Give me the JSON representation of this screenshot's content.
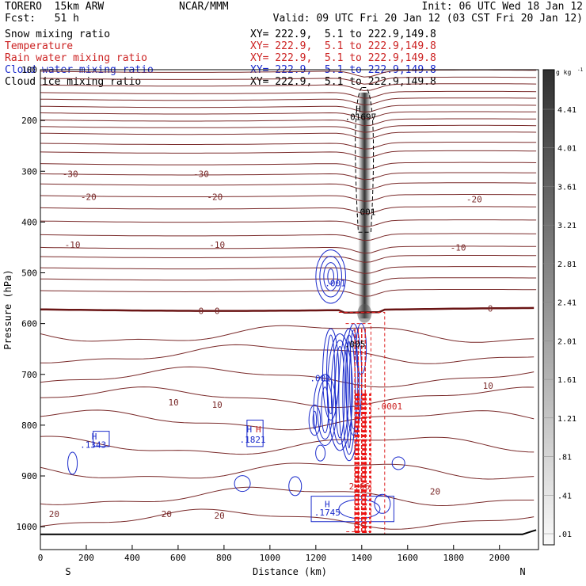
{
  "header": {
    "model": "TORERO  15km ARW",
    "org": "NCAR/MMM",
    "init": "Init: 06 UTC Wed 18 Jan 12",
    "fcst": "Fcst:   51 h",
    "valid": "Valid: 09 UTC Fri 20 Jan 12 (03 CST Fri 20 Jan 12)"
  },
  "legend": [
    {
      "label": "Snow mixing ratio",
      "xy": "XY= 222.9,  5.1 to 222.9,149.8",
      "color": "#000000"
    },
    {
      "label": "Temperature",
      "xy": "XY= 222.9,  5.1 to 222.9,149.8",
      "color": "#cc2222"
    },
    {
      "label": "Rain water mixing ratio",
      "xy": "XY= 222.9,  5.1 to 222.9,149.8",
      "color": "#cc2222"
    },
    {
      "label": "Cloud water mixing ratio",
      "xy": "XY= 222.9,  5.1 to 222.9,149.8",
      "color": "#1a2acb"
    },
    {
      "label": "Cloud ice mixing ratio",
      "xy": "XY= 222.9,  5.1 to 222.9,149.8",
      "color": "#000000"
    }
  ],
  "chart_data": {
    "type": "cross-section",
    "xlabel": "Distance (km)",
    "ylabel": "Pressure (hPa)",
    "x_ticks": [
      0,
      200,
      400,
      600,
      800,
      1000,
      1200,
      1400,
      1600,
      1800,
      2000
    ],
    "y_ticks": [
      200,
      300,
      400,
      500,
      600,
      700,
      800,
      900,
      1000
    ],
    "y_top_label": "100",
    "xlim": [
      0,
      2170
    ],
    "ylim": [
      1045,
      100
    ],
    "endpoints": {
      "left": "S",
      "right": "N"
    },
    "colorbar": {
      "unit": "g kg",
      "unit_exp": "-1",
      "ticks": [
        "4.41",
        "4.01",
        "3.61",
        "3.21",
        "2.81",
        "2.41",
        "2.01",
        "1.61",
        "1.21",
        ".81",
        ".41",
        ".01"
      ]
    },
    "temperature_labels": [
      {
        "text": "-30",
        "x": 130,
        "p": 305
      },
      {
        "text": "-30",
        "x": 700,
        "p": 305
      },
      {
        "text": "-20",
        "x": 210,
        "p": 350
      },
      {
        "text": "-20",
        "x": 760,
        "p": 350
      },
      {
        "text": "-20",
        "x": 1890,
        "p": 355
      },
      {
        "text": "-10",
        "x": 140,
        "p": 445
      },
      {
        "text": "-10",
        "x": 770,
        "p": 445
      },
      {
        "text": "-10",
        "x": 1820,
        "p": 450
      },
      {
        "text": "0",
        "x": 700,
        "p": 575
      },
      {
        "text": "0",
        "x": 770,
        "p": 575
      },
      {
        "text": "0",
        "x": 1960,
        "p": 570
      },
      {
        "text": "10",
        "x": 580,
        "p": 755
      },
      {
        "text": "10",
        "x": 770,
        "p": 760
      },
      {
        "text": "10",
        "x": 1950,
        "p": 722
      },
      {
        "text": "20",
        "x": 60,
        "p": 975
      },
      {
        "text": "20",
        "x": 550,
        "p": 975
      },
      {
        "text": "20",
        "x": 780,
        "p": 978
      },
      {
        "text": "20",
        "x": 1720,
        "p": 930
      }
    ],
    "annotations": [
      {
        "text": "H",
        "x": 1385,
        "p": 177,
        "color": "#000000"
      },
      {
        "text": ".01697",
        "x": 1395,
        "p": 193,
        "color": "#000000"
      },
      {
        "text": ".001",
        "x": 1415,
        "p": 380,
        "color": "#000000"
      },
      {
        "text": ".001",
        "x": 1285,
        "p": 520,
        "color": "#1a2acb"
      },
      {
        "text": ".001",
        "x": 1220,
        "p": 707,
        "color": "#1a2acb"
      },
      {
        "text": ".005",
        "x": 1370,
        "p": 640,
        "color": "#000000"
      },
      {
        "text": ".0001",
        "x": 1520,
        "p": 763,
        "color": "#cc2222"
      },
      {
        "text": "H",
        "x": 235,
        "p": 822,
        "color": "#1a2acb"
      },
      {
        "text": ".1343",
        "x": 230,
        "p": 838,
        "color": "#1a2acb"
      },
      {
        "text": "H",
        "x": 910,
        "p": 808,
        "color": "#1a2acb"
      },
      {
        "text": "H",
        "x": 950,
        "p": 808,
        "color": "#cc2222"
      },
      {
        "text": ".1821",
        "x": 925,
        "p": 828,
        "color": "#1a2acb"
      },
      {
        "text": "H",
        "x": 1390,
        "p": 905,
        "color": "#cc2222"
      },
      {
        "text": "2.66",
        "x": 1390,
        "p": 920,
        "color": "#cc2222"
      },
      {
        "text": "H",
        "x": 1250,
        "p": 955,
        "color": "#1a2acb"
      },
      {
        "text": ".1745",
        "x": 1250,
        "p": 972,
        "color": "#1a2acb"
      }
    ]
  }
}
